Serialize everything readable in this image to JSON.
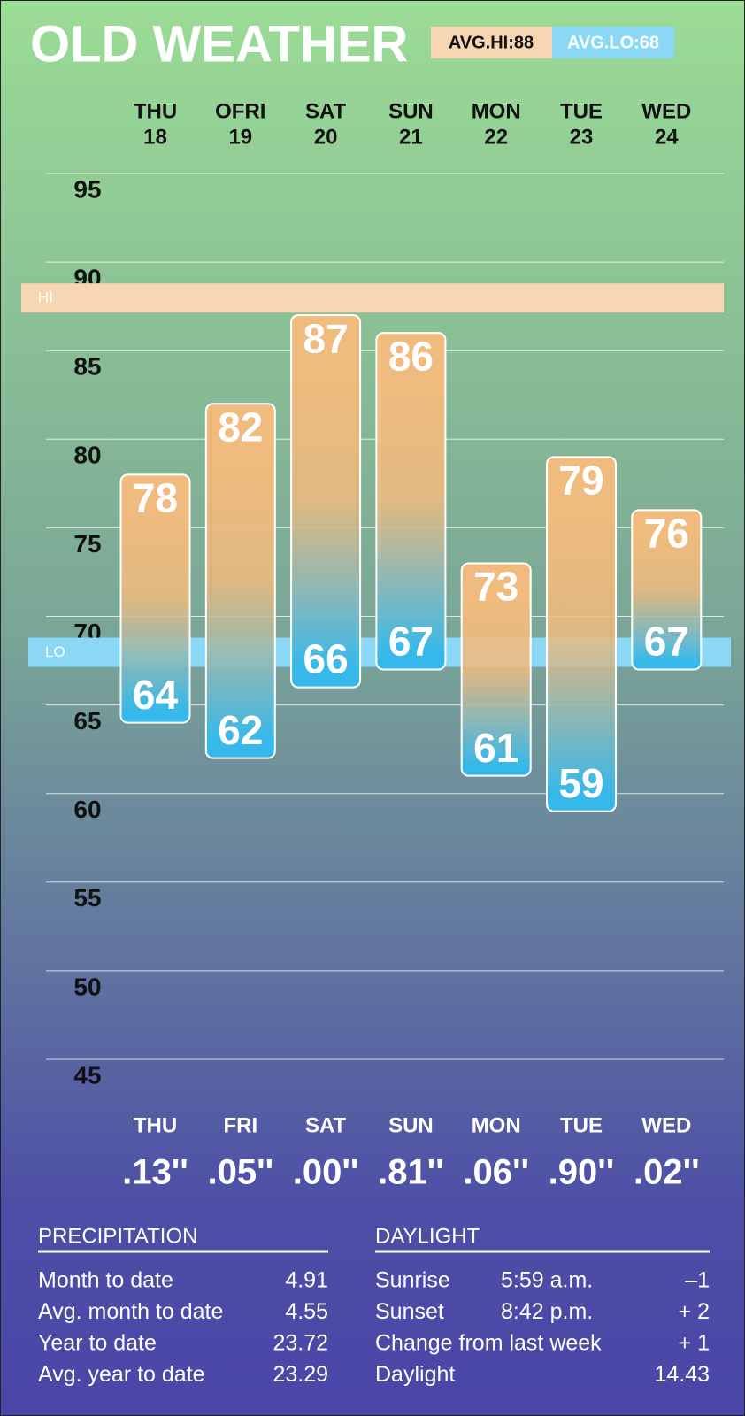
{
  "chart_data": {
    "type": "range",
    "title": "OLD WEATHER",
    "categories": [
      "THU",
      "OFRI",
      "SAT",
      "SUN",
      "MON",
      "TUE",
      "WED"
    ],
    "dates": [
      18,
      19,
      20,
      21,
      22,
      23,
      24
    ],
    "highs": [
      78,
      82,
      87,
      86,
      73,
      79,
      76
    ],
    "lows": [
      64,
      62,
      66,
      67,
      61,
      59,
      67
    ],
    "high_color": "#f0bb7e",
    "low_color": "#36b8ea",
    "avg_hi": {
      "value": 88,
      "label": "AVG.HI:88",
      "band_label": "HI",
      "color": "#f7d6b3"
    },
    "avg_lo": {
      "value": 68,
      "label": "AVG.LO:68",
      "band_label": "LO",
      "color": "#8ad8f6"
    },
    "ylim": [
      45,
      95
    ],
    "yticks": [
      45,
      50,
      55,
      60,
      65,
      70,
      75,
      80,
      85,
      90,
      95
    ],
    "grid": true
  },
  "precipitation_row": {
    "days": [
      "THU",
      "FRI",
      "SAT",
      "SUN",
      "MON",
      "TUE",
      "WED"
    ],
    "values": [
      0.13,
      0.05,
      0.0,
      0.81,
      0.06,
      0.9,
      0.02
    ],
    "value_labels": [
      ".13''",
      ".05''",
      ".00''",
      ".81''",
      ".06''",
      ".90''",
      ".02''"
    ]
  },
  "precipitation": {
    "title": "PRECIPITATION",
    "rows": [
      [
        "Month to date",
        "4.91"
      ],
      [
        "Avg. month to date",
        "4.55"
      ],
      [
        "Year to date",
        "23.72"
      ],
      [
        "Avg. year to date",
        "23.29"
      ]
    ]
  },
  "daylight": {
    "title": "DAYLIGHT",
    "rows": [
      [
        "Sunrise",
        "5:59 a.m.",
        "–1"
      ],
      [
        "Sunset",
        "8:42 p.m.",
        "+ 2"
      ],
      [
        "Change from last week",
        "+ 1"
      ],
      [
        "Daylight",
        "14.43"
      ]
    ]
  }
}
